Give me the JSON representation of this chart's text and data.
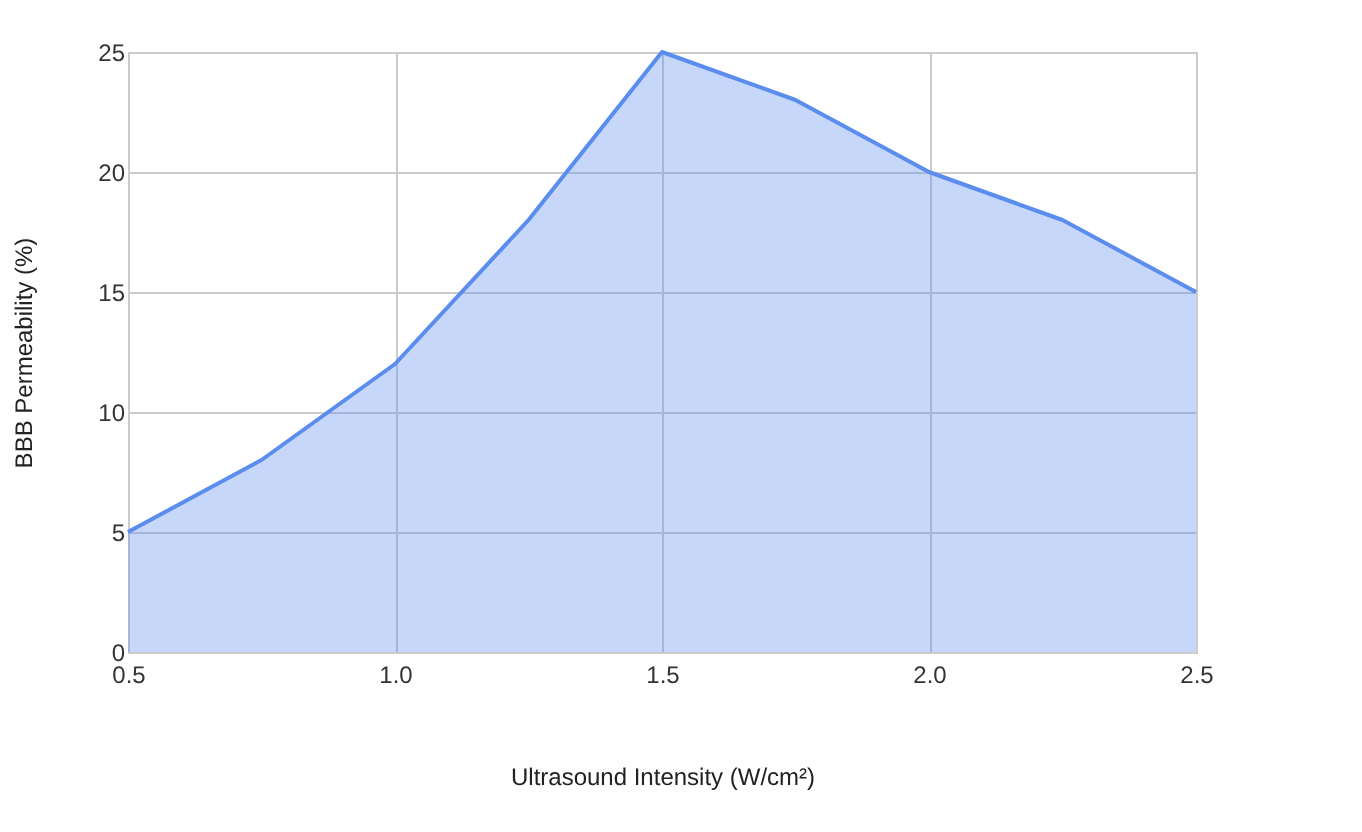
{
  "chart_data": {
    "type": "area",
    "xlabel": "Ultrasound Intensity (W/cm²)",
    "ylabel": "BBB Permeability (%)",
    "x": [
      0.5,
      0.75,
      1.0,
      1.25,
      1.5,
      1.75,
      2.0,
      2.25,
      2.5
    ],
    "series": [
      {
        "color": "#5b8def",
        "values": [
          5,
          8,
          12,
          18,
          25,
          23,
          20,
          18,
          15
        ]
      }
    ],
    "xlim": [
      0.5,
      2.5
    ],
    "xticks": [
      0.5,
      {
        "value": 1.0,
        "label": "1.0"
      },
      1.5,
      {
        "value": 2.0,
        "label": "2.0"
      },
      2.5
    ],
    "ylim": [
      0,
      25
    ],
    "yticks": [
      0,
      5,
      10,
      15,
      20,
      25
    ],
    "grid": true,
    "marker": "none",
    "line_style": "solid"
  }
}
